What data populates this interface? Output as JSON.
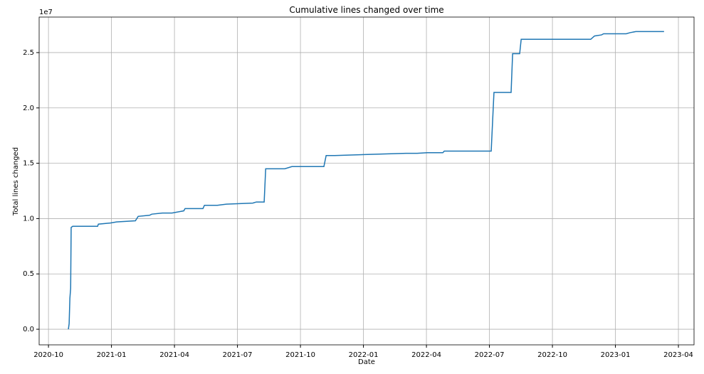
{
  "chart_data": {
    "type": "line",
    "title": "Cumulative lines changed over time",
    "xlabel": "Date",
    "ylabel": "Total lines changed",
    "offset_label": "1e7",
    "x": [
      2020.829,
      2020.832,
      2020.835,
      2020.838,
      2020.84,
      2020.846,
      2020.945,
      2020.948,
      2020.996,
      2021.02,
      2021.095,
      2021.106,
      2021.151,
      2021.16,
      2021.202,
      2021.24,
      2021.287,
      2021.292,
      2021.363,
      2021.369,
      2021.42,
      2021.456,
      2021.561,
      2021.575,
      2021.606,
      2021.612,
      2021.688,
      2021.716,
      2021.843,
      2021.852,
      2021.886,
      2022.027,
      2022.168,
      2022.213,
      2022.253,
      2022.315,
      2022.321,
      2022.507,
      2022.518,
      2022.586,
      2022.592,
      2022.62,
      2022.626,
      2022.902,
      2022.917,
      2022.945,
      2022.953,
      2023.043,
      2023.058,
      2023.081,
      2023.193
    ],
    "series": [
      {
        "name": "Total lines changed",
        "color": "#1f77b4",
        "values": [
          0,
          0.05,
          0.28,
          0.37,
          0.92,
          0.93,
          0.93,
          0.95,
          0.96,
          0.97,
          0.98,
          1.02,
          1.03,
          1.04,
          1.05,
          1.05,
          1.07,
          1.09,
          1.09,
          1.12,
          1.12,
          1.13,
          1.14,
          1.15,
          1.15,
          1.45,
          1.45,
          1.47,
          1.47,
          1.57,
          1.57,
          1.58,
          1.59,
          1.59,
          1.595,
          1.595,
          1.61,
          1.61,
          2.14,
          2.14,
          2.49,
          2.49,
          2.62,
          2.62,
          2.65,
          2.66,
          2.67,
          2.67,
          2.68,
          2.69,
          2.69
        ]
      }
    ],
    "xlim": [
      2020.713,
      2023.312
    ],
    "ylim": [
      -0.141,
      2.821
    ],
    "xticks": [
      {
        "value": 2020.75,
        "label": "2020-10"
      },
      {
        "value": 2021.0,
        "label": "2021-01"
      },
      {
        "value": 2021.25,
        "label": "2021-04"
      },
      {
        "value": 2021.5,
        "label": "2021-07"
      },
      {
        "value": 2021.75,
        "label": "2021-10"
      },
      {
        "value": 2022.0,
        "label": "2022-01"
      },
      {
        "value": 2022.25,
        "label": "2022-04"
      },
      {
        "value": 2022.5,
        "label": "2022-07"
      },
      {
        "value": 2022.75,
        "label": "2022-10"
      },
      {
        "value": 2023.0,
        "label": "2023-01"
      },
      {
        "value": 2023.25,
        "label": "2023-04"
      }
    ],
    "yticks": [
      {
        "value": 0,
        "label": "0.0"
      },
      {
        "value": 0.5,
        "label": "0.5"
      },
      {
        "value": 1,
        "label": "1.0"
      },
      {
        "value": 1.5,
        "label": "1.5"
      },
      {
        "value": 2,
        "label": "2.0"
      },
      {
        "value": 2.5,
        "label": "2.5"
      }
    ],
    "grid": true
  }
}
